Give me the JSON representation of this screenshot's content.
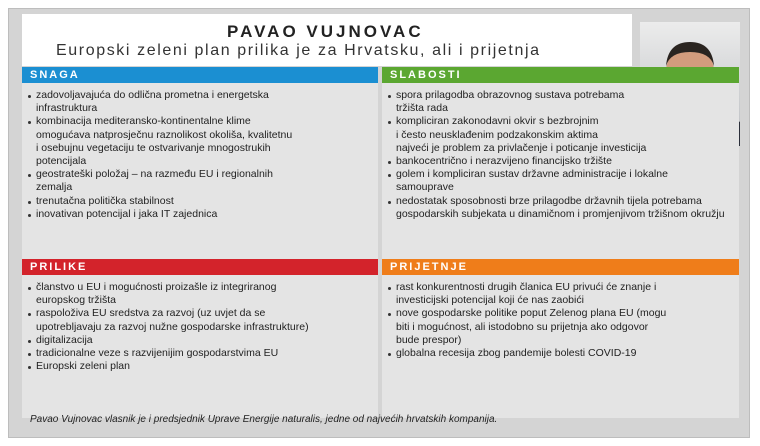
{
  "header": {
    "title": "PAVAO VUJNOVAC",
    "subtitle": "Europski zeleni plan prilika je za Hrvatsku, ali i prijetnja"
  },
  "sections": [
    {
      "title": "SNAGA",
      "items": [
        [
          "zadovoljavajuća do odlična prometna i energetska",
          "infrastruktura"
        ],
        [
          "kombinacija mediteransko-kontinentalne klime",
          "omogućava natprosječnu raznolikost okoliša, kvalitetnu",
          "i osebujnu vegetaciju te ostvarivanje mnogostrukih",
          "potencijala"
        ],
        [
          "geostrateški položaj – na razmeđu EU i regionalnih",
          "zemalja"
        ],
        [
          "trenutačna politička stabilnost"
        ],
        [
          "inovativan potencijal i jaka IT zajednica"
        ]
      ]
    },
    {
      "title": "SLABOSTI",
      "items": [
        [
          "spora prilagodba obrazovnog sustava potrebama",
          "tržišta rada"
        ],
        [
          "kompliciran zakonodavni okvir s bezbrojnim",
          "i često neusklađenim podzakonskim aktima",
          "najveći je problem za privlačenje i poticanje investicija"
        ],
        [
          "bankocentrično i nerazvijeno financijsko tržište"
        ],
        [
          "golem i kompliciran sustav državne administracije i lokalne",
          "samouprave"
        ],
        [
          "nedostatak sposobnosti brze prilagodbe državnih tijela potrebama",
          "gospodarskih subjekata u dinamičnom i promjenjivom tržišnom okružju"
        ]
      ]
    },
    {
      "title": "PRILIKE",
      "items": [
        [
          "članstvo u EU i mogućnosti proizašle iz integriranog",
          "europskog tržišta"
        ],
        [
          "raspoloživa EU sredstva za razvoj (uz uvjet da se",
          "upotrebljavaju za razvoj nužne gospodarske infrastrukture)"
        ],
        [
          "digitalizacija"
        ],
        [
          "tradicionalne veze s razvijenijim gospodarstvima EU"
        ],
        [
          "Europski zeleni plan"
        ]
      ]
    },
    {
      "title": "PRIJETNJE",
      "items": [
        [
          "rast konkurentnosti drugih članica EU privući će znanje i",
          "investicijski potencijal koji će nas zaobići"
        ],
        [
          "nove gospodarske politike poput Zelenog plana EU (mogu",
          "biti i mogućnost, ali istodobno su prijetnja ako odgovor",
          "bude prespor)"
        ],
        [
          "globalna recesija zbog pandemije bolesti COVID-19"
        ]
      ]
    }
  ],
  "footer": "Pavao Vujnovac vlasnik je i predsjednik Uprave Energije naturalis, jedne od najvećih hrvatskih kompanija."
}
